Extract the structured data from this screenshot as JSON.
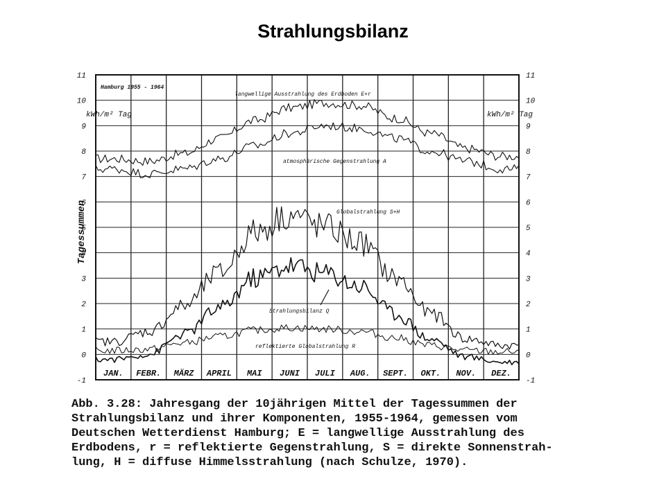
{
  "slide": {
    "title": "Strahlungsbilanz"
  },
  "chart_data": {
    "type": "line",
    "title": "Hamburg 1955 - 1964",
    "ylabel": "Tagessummen",
    "yunit": "kWh/m² Tag",
    "ylim": [
      -1,
      11
    ],
    "yticks": [
      "-1",
      "0",
      "1",
      "2",
      "3",
      "4",
      "5",
      "6",
      "7",
      "8",
      "9",
      "10",
      "11"
    ],
    "categories": [
      "JAN.",
      "FEBR.",
      "MÄRZ",
      "APRIL",
      "MAI",
      "JUNI",
      "JULI",
      "AUG.",
      "SEPT.",
      "OKT.",
      "NOV.",
      "DEZ."
    ],
    "grid": true,
    "series": [
      {
        "name": "langwellige Ausstrahlung des Erdboden E+r",
        "color": "#111111",
        "values": [
          7.7,
          7.6,
          7.9,
          8.5,
          9.2,
          9.7,
          9.9,
          9.8,
          9.3,
          8.7,
          8.1,
          7.8
        ]
      },
      {
        "name": "atmosphärische Gegenstrahlung A",
        "color": "#111111",
        "values": [
          7.3,
          7.1,
          7.3,
          7.7,
          8.2,
          8.7,
          9.0,
          8.9,
          8.5,
          8.0,
          7.6,
          7.3
        ]
      },
      {
        "name": "Globalstrahlung S+H",
        "color": "#111111",
        "values": [
          0.5,
          0.9,
          1.9,
          3.2,
          4.8,
          5.5,
          5.0,
          4.4,
          3.0,
          1.6,
          0.6,
          0.35
        ]
      },
      {
        "name": "Strahlungsbilanz Q",
        "color": "#111111",
        "values": [
          -0.2,
          0.0,
          0.8,
          1.8,
          3.0,
          3.5,
          3.2,
          2.7,
          1.6,
          0.6,
          -0.1,
          -0.3
        ]
      },
      {
        "name": "reflektierte Globalstrahlung R",
        "color": "#111111",
        "values": [
          0.15,
          0.2,
          0.45,
          0.7,
          0.95,
          1.05,
          1.0,
          0.9,
          0.65,
          0.35,
          0.15,
          0.1
        ]
      }
    ]
  },
  "caption": {
    "lines": [
      "Abb. 3.28: Jahresgang der 10jährigen Mittel der Tagessummen der",
      "Strahlungsbilanz und ihrer Komponenten, 1955-1964, gemessen vom",
      "Deutschen Wetterdienst Hamburg; E = langwellige Ausstrahlung des",
      "Erdbodens, r = reflektierte Gegenstrahlung, S = direkte Sonnenstrah-",
      "lung, H = diffuse Himmelsstrahlung (nach Schulze, 1970)."
    ]
  }
}
